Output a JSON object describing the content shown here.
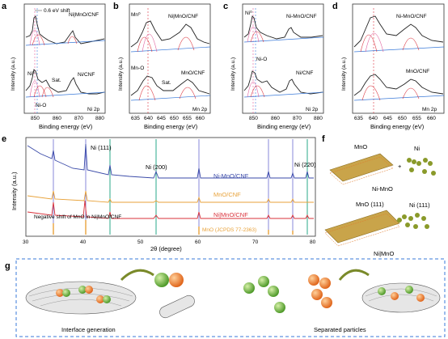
{
  "panels": {
    "a": {
      "label": "a",
      "annotation_shift": "0.6 eV shift",
      "series_top": "Ni|MnO/CNF",
      "series_bottom": "Ni/CNF",
      "peak_ni0": "Ni⁰",
      "peak_nio": "Ni-O",
      "peak_sat": "Sat.",
      "region": "Ni 2p",
      "xlabel": "Binding energy (eV)",
      "ylabel": "Intensity (a.u.)",
      "xticks": [
        "850",
        "860",
        "870",
        "880"
      ]
    },
    "b": {
      "label": "b",
      "series_top": "Ni|MnO/CNF",
      "series_bottom": "MnO/CNF",
      "peak_mn0": "Mn⁰",
      "peak_mno": "Mn-O",
      "peak_sat": "Sat.",
      "region": "Mn 2p",
      "xlabel": "Binding energy (eV)",
      "ylabel": "Intensity (a.u.)",
      "xticks": [
        "635",
        "640",
        "645",
        "650",
        "655",
        "660"
      ]
    },
    "c": {
      "label": "c",
      "series_top": "Ni-MnO/CNF",
      "series_bottom": "Ni/CNF",
      "peak_ni0": "Ni⁰",
      "peak_nio": "Ni-O",
      "region": "Ni 2p",
      "xlabel": "Binding energy (eV)",
      "ylabel": "Intensity (a.u.)",
      "xticks": [
        "850",
        "860",
        "870",
        "880"
      ]
    },
    "d": {
      "label": "d",
      "series_top": "Ni-MnO/CNF",
      "series_bottom": "MnO/CNF",
      "region": "Mn 2p",
      "xlabel": "Binding energy (eV)",
      "ylabel": "Intensity (a.u.)",
      "xticks": [
        "635",
        "640",
        "645",
        "650",
        "655",
        "660"
      ]
    },
    "e": {
      "label": "e",
      "xlabel": "2θ (degree)",
      "ylabel": "Intensity (a.u.)",
      "xticks": [
        "30",
        "40",
        "50",
        "60",
        "70",
        "80"
      ],
      "peak_ni111": "Ni (111)",
      "peak_ni200": "Ni (200)",
      "peak_ni220": "Ni (220)",
      "series1": "Ni-MnO/CNF",
      "series2": "MnO/CNF",
      "series3": "Ni|MnO/CNF",
      "reference": "MnO (JCPDS 77-2363)",
      "note": "Negative shift of MnO in Ni|MnO/CNF",
      "colors": {
        "s1": "#3a4aa8",
        "s2": "#e8a23a",
        "s3": "#d9303a",
        "ref_line": "#e8a23a",
        "ni_line": "#2aa889"
      }
    },
    "f": {
      "label": "f",
      "top_left": "MnO",
      "top_right": "Ni",
      "top_plus": "+",
      "top_caption": "Ni-MnO",
      "bottom_left": "MnO (111)",
      "bottom_right": "Ni (111)",
      "bottom_caption": "Ni|MnO"
    },
    "g": {
      "label": "g",
      "left_caption": "Interface generation",
      "right_caption": "Separated particles"
    }
  }
}
